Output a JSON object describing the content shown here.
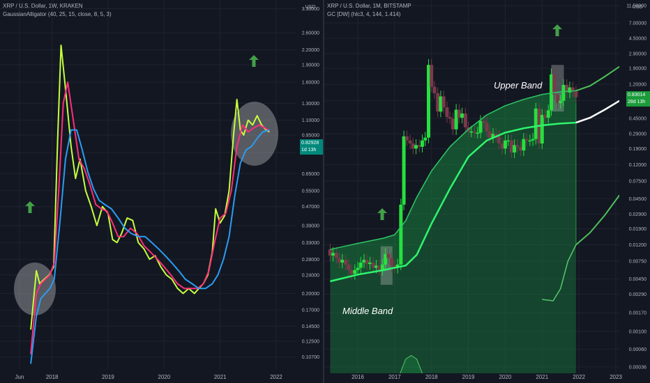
{
  "left_chart": {
    "header_line1": "XRP / U.S. Dollar, 1W, KRAKEN",
    "header_line2": "GaussianAlligator (40, 25, 15, close, 8, 5, 3)",
    "price_label": "0.82928",
    "price_sub": "1d 13h",
    "price_box_color": "#00897b",
    "currency": "USD"
  },
  "right_chart": {
    "header_line1": "XRP / U.S. Dollar, 1M, BITSTAMP",
    "header_line2": "GC [DW] (hlc3, 4, 144, 1.414)",
    "price_label": "0.83014",
    "price_sub": "28d 13h",
    "price_box_color": "#1b9b3b",
    "currency": "USD",
    "annotation_upper": "Upper Band",
    "annotation_middle": "Middle Band"
  },
  "chart_data": [
    {
      "type": "line",
      "title": "XRP / U.S. Dollar, 1W, KRAKEN",
      "indicator": "GaussianAlligator (40, 25, 15, close, 8, 5, 3)",
      "y_scale": "log",
      "ylim": [
        0.095,
        3.4
      ],
      "y_ticks": [
        "3.30000",
        "2.60000",
        "2.20000",
        "1.90000",
        "1.60000",
        "1.30000",
        "1.10000",
        "0.95000",
        "0.80000",
        "0.65000",
        "0.55000",
        "0.47000",
        "0.39000",
        "0.33000",
        "0.28000",
        "0.24000",
        "0.20000",
        "0.17000",
        "0.14500",
        "0.12500",
        "0.10700"
      ],
      "x_ticks": [
        "Jun",
        "2018",
        "2019",
        "2020",
        "2021",
        "2022"
      ],
      "series": [
        {
          "color": "#c6ff3d",
          "x": [
            2017.62,
            2017.72,
            2017.78,
            2017.86,
            2017.95,
            2018.03,
            2018.1,
            2018.16,
            2018.24,
            2018.34,
            2018.42,
            2018.5,
            2018.6,
            2018.7,
            2018.8,
            2018.9,
            2019.0,
            2019.08,
            2019.16,
            2019.24,
            2019.34,
            2019.44,
            2019.54,
            2019.64,
            2019.74,
            2019.84,
            2019.94,
            2020.04,
            2020.14,
            2020.24,
            2020.34,
            2020.44,
            2020.54,
            2020.62,
            2020.7,
            2020.78,
            2020.86,
            2020.92,
            2021.0,
            2021.08,
            2021.16,
            2021.24,
            2021.3,
            2021.36,
            2021.42,
            2021.5,
            2021.58,
            2021.66,
            2021.74,
            2021.82,
            2021.88
          ],
          "values": [
            0.14,
            0.25,
            0.22,
            0.23,
            0.24,
            0.26,
            0.9,
            2.3,
            1.5,
            0.85,
            0.62,
            0.75,
            0.55,
            0.47,
            0.39,
            0.47,
            0.44,
            0.34,
            0.33,
            0.36,
            0.42,
            0.41,
            0.33,
            0.31,
            0.28,
            0.29,
            0.26,
            0.24,
            0.23,
            0.21,
            0.2,
            0.21,
            0.2,
            0.21,
            0.22,
            0.24,
            0.3,
            0.46,
            0.4,
            0.43,
            0.55,
            0.95,
            1.35,
            1.0,
            0.95,
            1.1,
            1.05,
            1.15,
            1.05,
            1.0,
            0.98
          ]
        },
        {
          "color": "#ff2e7a",
          "x": [
            2017.62,
            2017.72,
            2017.8,
            2017.88,
            2017.96,
            2018.04,
            2018.12,
            2018.2,
            2018.28,
            2018.38,
            2018.48,
            2018.58,
            2018.68,
            2018.78,
            2018.88,
            2018.98,
            2019.08,
            2019.18,
            2019.28,
            2019.4,
            2019.52,
            2019.64,
            2019.76,
            2019.88,
            2020.0,
            2020.12,
            2020.24,
            2020.36,
            2020.48,
            2020.6,
            2020.7,
            2020.8,
            2020.9,
            2021.0,
            2021.1,
            2021.2,
            2021.3,
            2021.4,
            2021.5,
            2021.6,
            2021.7,
            2021.8,
            2021.88
          ],
          "values": [
            0.11,
            0.2,
            0.22,
            0.23,
            0.24,
            0.27,
            0.55,
            1.3,
            1.6,
            1.1,
            0.75,
            0.68,
            0.58,
            0.48,
            0.46,
            0.45,
            0.4,
            0.35,
            0.35,
            0.38,
            0.36,
            0.32,
            0.3,
            0.28,
            0.26,
            0.24,
            0.22,
            0.21,
            0.21,
            0.21,
            0.22,
            0.25,
            0.33,
            0.42,
            0.44,
            0.55,
            0.85,
            1.05,
            0.98,
            1.02,
            1.05,
            1.02,
            0.99
          ]
        },
        {
          "color": "#2b9cf2",
          "x": [
            2017.62,
            2017.72,
            2017.8,
            2017.88,
            2017.96,
            2018.04,
            2018.14,
            2018.24,
            2018.34,
            2018.44,
            2018.54,
            2018.64,
            2018.74,
            2018.84,
            2018.94,
            2019.06,
            2019.18,
            2019.3,
            2019.42,
            2019.54,
            2019.66,
            2019.78,
            2019.9,
            2020.02,
            2020.14,
            2020.26,
            2020.38,
            2020.5,
            2020.62,
            2020.74,
            2020.86,
            2020.96,
            2021.06,
            2021.16,
            2021.26,
            2021.36,
            2021.46,
            2021.56,
            2021.66,
            2021.76,
            2021.88
          ],
          "values": [
            0.1,
            0.16,
            0.19,
            0.2,
            0.21,
            0.23,
            0.4,
            0.75,
            1.0,
            1.0,
            0.82,
            0.66,
            0.56,
            0.5,
            0.48,
            0.46,
            0.42,
            0.38,
            0.36,
            0.35,
            0.35,
            0.33,
            0.31,
            0.29,
            0.27,
            0.25,
            0.23,
            0.22,
            0.21,
            0.21,
            0.22,
            0.24,
            0.28,
            0.35,
            0.52,
            0.72,
            0.82,
            0.85,
            0.92,
            0.98,
            1.0
          ]
        }
      ],
      "annotations": [
        "up-arrow near 2017.65",
        "up-arrow near 2021.55",
        "gray circle around 2017 cross",
        "gray circle around 2021 cross"
      ]
    },
    {
      "type": "candlestick",
      "title": "XRP / U.S. Dollar, 1M, BITSTAMP",
      "indicator": "GC [DW] (hlc3, 4, 144, 1.414)",
      "y_scale": "log",
      "ylim": [
        0.0003,
        12
      ],
      "y_ticks": [
        "11.50000",
        "7.00000",
        "4.50000",
        "2.90000",
        "1.90000",
        "1.20000",
        "0.75000",
        "0.45000",
        "0.29000",
        "0.19000",
        "0.12000",
        "0.07500",
        "0.04500",
        "0.02900",
        "0.01900",
        "0.01200",
        "0.00750",
        "0.00450",
        "0.00290",
        "0.00170",
        "0.00100",
        "0.00060",
        "0.00036"
      ],
      "x_ticks": [
        "2016",
        "2017",
        "2018",
        "2019",
        "2020",
        "2021",
        "2022",
        "2023"
      ],
      "candles": [
        {
          "t": 2015.25,
          "o": 0.0105,
          "c": 0.0088
        },
        {
          "t": 2015.33,
          "o": 0.0088,
          "c": 0.0095
        },
        {
          "t": 2015.42,
          "o": 0.0095,
          "c": 0.0082
        },
        {
          "t": 2015.5,
          "o": 0.0082,
          "c": 0.0072
        },
        {
          "t": 2015.58,
          "o": 0.0072,
          "c": 0.0078
        },
        {
          "t": 2015.67,
          "o": 0.0078,
          "c": 0.0068
        },
        {
          "t": 2015.75,
          "o": 0.0068,
          "c": 0.0058
        },
        {
          "t": 2015.83,
          "o": 0.0058,
          "c": 0.0052
        },
        {
          "t": 2015.92,
          "o": 0.0052,
          "c": 0.0058
        },
        {
          "t": 2016.0,
          "o": 0.0058,
          "c": 0.0062
        },
        {
          "t": 2016.08,
          "o": 0.0062,
          "c": 0.0072
        },
        {
          "t": 2016.17,
          "o": 0.0072,
          "c": 0.0078
        },
        {
          "t": 2016.25,
          "o": 0.0078,
          "c": 0.0069
        },
        {
          "t": 2016.33,
          "o": 0.0069,
          "c": 0.0072
        },
        {
          "t": 2016.42,
          "o": 0.0072,
          "c": 0.0062
        },
        {
          "t": 2016.5,
          "o": 0.0062,
          "c": 0.0066
        },
        {
          "t": 2016.58,
          "o": 0.0066,
          "c": 0.0058
        },
        {
          "t": 2016.67,
          "o": 0.0058,
          "c": 0.0068
        },
        {
          "t": 2016.75,
          "o": 0.0068,
          "c": 0.0092
        },
        {
          "t": 2016.83,
          "o": 0.0092,
          "c": 0.0082
        },
        {
          "t": 2016.92,
          "o": 0.0082,
          "c": 0.0065
        },
        {
          "t": 2017.0,
          "o": 0.0065,
          "c": 0.0062
        },
        {
          "t": 2017.08,
          "o": 0.0062,
          "c": 0.0068
        },
        {
          "t": 2017.17,
          "o": 0.0068,
          "c": 0.038
        },
        {
          "t": 2017.25,
          "o": 0.038,
          "c": 0.27
        },
        {
          "t": 2017.33,
          "o": 0.27,
          "c": 0.24
        },
        {
          "t": 2017.42,
          "o": 0.24,
          "c": 0.22
        },
        {
          "t": 2017.5,
          "o": 0.22,
          "c": 0.19
        },
        {
          "t": 2017.58,
          "o": 0.19,
          "c": 0.21
        },
        {
          "t": 2017.67,
          "o": 0.21,
          "c": 0.2
        },
        {
          "t": 2017.75,
          "o": 0.2,
          "c": 0.24
        },
        {
          "t": 2017.83,
          "o": 0.24,
          "c": 0.26
        },
        {
          "t": 2017.92,
          "o": 0.26,
          "c": 2.1
        },
        {
          "t": 2018.0,
          "o": 2.1,
          "c": 1.12
        },
        {
          "t": 2018.08,
          "o": 1.12,
          "c": 0.93
        },
        {
          "t": 2018.17,
          "o": 0.93,
          "c": 0.55
        },
        {
          "t": 2018.25,
          "o": 0.55,
          "c": 0.85
        },
        {
          "t": 2018.33,
          "o": 0.85,
          "c": 0.62
        },
        {
          "t": 2018.42,
          "o": 0.62,
          "c": 0.47
        },
        {
          "t": 2018.5,
          "o": 0.47,
          "c": 0.45
        },
        {
          "t": 2018.58,
          "o": 0.45,
          "c": 0.33
        },
        {
          "t": 2018.67,
          "o": 0.33,
          "c": 0.58
        },
        {
          "t": 2018.75,
          "o": 0.58,
          "c": 0.46
        },
        {
          "t": 2018.83,
          "o": 0.46,
          "c": 0.52
        },
        {
          "t": 2018.92,
          "o": 0.52,
          "c": 0.35
        },
        {
          "t": 2019.0,
          "o": 0.35,
          "c": 0.31
        },
        {
          "t": 2019.08,
          "o": 0.31,
          "c": 0.31
        },
        {
          "t": 2019.17,
          "o": 0.31,
          "c": 0.3
        },
        {
          "t": 2019.25,
          "o": 0.3,
          "c": 0.3
        },
        {
          "t": 2019.33,
          "o": 0.3,
          "c": 0.42
        },
        {
          "t": 2019.42,
          "o": 0.42,
          "c": 0.4
        },
        {
          "t": 2019.5,
          "o": 0.4,
          "c": 0.31
        },
        {
          "t": 2019.58,
          "o": 0.31,
          "c": 0.26
        },
        {
          "t": 2019.67,
          "o": 0.26,
          "c": 0.29
        },
        {
          "t": 2019.75,
          "o": 0.29,
          "c": 0.27
        },
        {
          "t": 2019.83,
          "o": 0.27,
          "c": 0.22
        },
        {
          "t": 2019.92,
          "o": 0.22,
          "c": 0.19
        },
        {
          "t": 2020.0,
          "o": 0.19,
          "c": 0.24
        },
        {
          "t": 2020.08,
          "o": 0.24,
          "c": 0.24
        },
        {
          "t": 2020.17,
          "o": 0.24,
          "c": 0.17
        },
        {
          "t": 2020.25,
          "o": 0.17,
          "c": 0.21
        },
        {
          "t": 2020.33,
          "o": 0.21,
          "c": 0.2
        },
        {
          "t": 2020.42,
          "o": 0.2,
          "c": 0.18
        },
        {
          "t": 2020.5,
          "o": 0.18,
          "c": 0.25
        },
        {
          "t": 2020.58,
          "o": 0.25,
          "c": 0.24
        },
        {
          "t": 2020.67,
          "o": 0.24,
          "c": 0.24
        },
        {
          "t": 2020.75,
          "o": 0.24,
          "c": 0.25
        },
        {
          "t": 2020.83,
          "o": 0.25,
          "c": 0.6
        },
        {
          "t": 2020.92,
          "o": 0.6,
          "c": 0.22
        },
        {
          "t": 2021.0,
          "o": 0.22,
          "c": 0.5
        },
        {
          "t": 2021.08,
          "o": 0.5,
          "c": 0.46
        },
        {
          "t": 2021.17,
          "o": 0.46,
          "c": 0.57
        },
        {
          "t": 2021.25,
          "o": 0.57,
          "c": 1.6
        },
        {
          "t": 2021.33,
          "o": 1.6,
          "c": 0.9
        },
        {
          "t": 2021.42,
          "o": 0.9,
          "c": 0.7
        },
        {
          "t": 2021.5,
          "o": 0.7,
          "c": 0.75
        },
        {
          "t": 2021.58,
          "o": 0.75,
          "c": 1.18
        },
        {
          "t": 2021.67,
          "o": 1.18,
          "c": 0.95
        },
        {
          "t": 2021.75,
          "o": 0.95,
          "c": 1.1
        },
        {
          "t": 2021.83,
          "o": 1.1,
          "c": 0.98
        },
        {
          "t": 2021.92,
          "o": 0.98,
          "c": 0.83
        }
      ],
      "bands": {
        "upper": {
          "x": [
            2015.25,
            2016.0,
            2016.7,
            2017.0,
            2017.3,
            2017.6,
            2018.0,
            2018.5,
            2019.0,
            2019.5,
            2020.0,
            2020.5,
            2021.0,
            2021.5,
            2021.92
          ],
          "values": [
            0.0105,
            0.0125,
            0.0145,
            0.016,
            0.024,
            0.047,
            0.1,
            0.2,
            0.33,
            0.5,
            0.65,
            0.78,
            0.9,
            0.97,
            1.0
          ]
        },
        "middle": {
          "x": [
            2015.25,
            2016.0,
            2016.7,
            2017.0,
            2017.3,
            2017.6,
            2018.0,
            2018.5,
            2019.0,
            2019.5,
            2020.0,
            2020.5,
            2021.0,
            2021.5,
            2021.92
          ],
          "values": [
            0.0042,
            0.0051,
            0.0058,
            0.0062,
            0.0066,
            0.009,
            0.022,
            0.06,
            0.15,
            0.24,
            0.3,
            0.34,
            0.37,
            0.39,
            0.4
          ]
        },
        "lower_fill_edge": {
          "x": [
            2015.25,
            2016.0,
            2016.5,
            2017.0,
            2017.5,
            2018.0,
            2018.5,
            2019.0,
            2019.5,
            2020.0,
            2020.5,
            2021.0,
            2021.3,
            2021.5,
            2021.7,
            2021.92
          ],
          "values": [
            0.0025,
            0.0025,
            0.0025,
            0.0025,
            0.0025,
            0.0025,
            0.0025,
            0.0025,
            0.0025,
            0.0025,
            0.0025,
            0.0025,
            0.0024,
            0.0034,
            0.0075,
            0.012
          ]
        },
        "projection_upper": {
          "x": [
            2021.92,
            2022.3,
            2022.7,
            2023.1
          ],
          "values": [
            1.0,
            1.15,
            1.5,
            2.0
          ]
        },
        "projection_middle": {
          "x": [
            2021.92,
            2022.3,
            2022.7,
            2023.1
          ],
          "values": [
            0.4,
            0.46,
            0.58,
            0.75
          ]
        },
        "projection_lower": {
          "x": [
            2021.92,
            2022.3,
            2022.7,
            2023.1
          ],
          "values": [
            0.012,
            0.017,
            0.028,
            0.05
          ]
        },
        "bottom_arc": {
          "x": [
            2017.15,
            2017.3,
            2017.45,
            2017.6,
            2017.75
          ],
          "values": [
            0.0003,
            0.00045,
            0.0005,
            0.00045,
            0.0003
          ]
        }
      },
      "annotations": [
        "Upper Band",
        "Middle Band",
        "up-arrow near 2017.6",
        "up-arrow near 2021.55"
      ]
    }
  ]
}
